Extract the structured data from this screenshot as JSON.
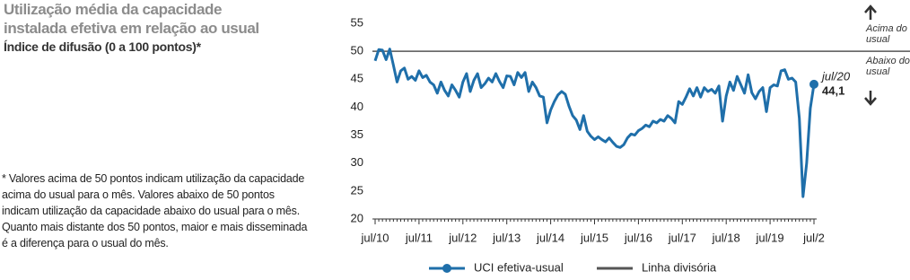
{
  "chart_data": {
    "type": "line",
    "title": "Utilização média da capacidade instalada efetiva em relação ao usual",
    "subtitle": "Índice de difusão (0 a 100 pontos)*",
    "note": "* Valores acima de 50 pontos indicam utilização da capacidade acima do usual para o mês. Valores abaixo de 50 pontos indicam utilização da capacidade abaixo do usual para o mês. Quanto mais distante dos 50 pontos, maior e mais disseminada é a diferença para o usual do mês.",
    "above_label": "Acima do usual",
    "below_label": "Abaixo do usual",
    "annotation": "jul/20",
    "categories": [
      "jul/10",
      null,
      null,
      null,
      null,
      null,
      null,
      null,
      null,
      null,
      null,
      null,
      "jul/11",
      null,
      null,
      null,
      null,
      null,
      null,
      null,
      null,
      null,
      null,
      null,
      "jul/12",
      null,
      null,
      null,
      null,
      null,
      null,
      null,
      null,
      null,
      null,
      null,
      "jul/13",
      null,
      null,
      null,
      null,
      null,
      null,
      null,
      null,
      null,
      null,
      null,
      "jul/14",
      null,
      null,
      null,
      null,
      null,
      null,
      null,
      null,
      null,
      null,
      null,
      "jul/15",
      null,
      null,
      null,
      null,
      null,
      null,
      null,
      null,
      null,
      null,
      null,
      "jul/16",
      null,
      null,
      null,
      null,
      null,
      null,
      null,
      null,
      null,
      null,
      null,
      "jul/17",
      null,
      null,
      null,
      null,
      null,
      null,
      null,
      null,
      null,
      null,
      null,
      "jul/18",
      null,
      null,
      null,
      null,
      null,
      null,
      null,
      null,
      null,
      null,
      null,
      "jul/19",
      null,
      null,
      null,
      null,
      null,
      null,
      null,
      null,
      null,
      null,
      null,
      "jul/2"
    ],
    "series": [
      {
        "name": "UCI efetiva-usual",
        "color": "#1f6faa",
        "values": [
          48.3,
          50.3,
          50.2,
          48.5,
          50.4,
          47.5,
          44.5,
          46.5,
          47,
          45,
          45.5,
          44.8,
          46.5,
          45.3,
          45.7,
          44.5,
          44,
          42.5,
          44.5,
          43,
          42,
          44,
          43,
          41.8,
          44.5,
          46,
          42.8,
          44.8,
          46,
          43.5,
          44.2,
          45.2,
          44.5,
          46,
          44.6,
          43.5,
          45.6,
          45.5,
          44,
          46.2,
          45.3,
          46.2,
          42.8,
          44.5,
          43.5,
          42,
          41.8,
          37.2,
          39.5,
          41,
          42.2,
          42.8,
          42.3,
          40.2,
          38.5,
          37.7,
          36,
          38.5,
          35.7,
          34.8,
          34.2,
          34.7,
          34.2,
          33.8,
          34.5,
          33.7,
          33,
          32.8,
          33.3,
          34.5,
          35.2,
          35,
          35.8,
          36.2,
          36.8,
          36.5,
          37.5,
          37.2,
          37.8,
          37.5,
          38.5,
          38,
          37.2,
          41,
          40.5,
          41.8,
          43.3,
          42,
          43.5,
          41.8,
          43.5,
          42.8,
          43.2,
          42.5,
          43.8,
          37.5,
          42,
          44.5,
          43,
          45.5,
          44,
          42.5,
          45.8,
          42.6,
          41.5,
          42.8,
          43.5,
          39.2,
          43.5,
          44,
          43.8,
          46.5,
          46.7,
          45,
          45.2,
          44.5,
          38,
          24,
          30,
          39.8,
          44.1
        ],
        "value_labels": [
          null,
          null,
          null,
          null,
          null,
          null,
          null,
          null,
          null,
          null,
          null,
          null,
          null,
          null,
          null,
          null,
          null,
          null,
          null,
          null,
          null,
          null,
          null,
          null,
          null,
          null,
          null,
          null,
          null,
          null,
          null,
          null,
          null,
          null,
          null,
          null,
          null,
          null,
          null,
          null,
          null,
          null,
          null,
          null,
          null,
          null,
          null,
          null,
          null,
          null,
          null,
          null,
          null,
          null,
          null,
          null,
          null,
          null,
          null,
          null,
          null,
          null,
          null,
          null,
          null,
          null,
          null,
          null,
          null,
          null,
          null,
          null,
          null,
          null,
          null,
          null,
          null,
          null,
          null,
          null,
          null,
          null,
          null,
          null,
          null,
          null,
          null,
          null,
          null,
          null,
          null,
          null,
          null,
          null,
          null,
          null,
          null,
          null,
          null,
          null,
          null,
          null,
          null,
          null,
          null,
          null,
          null,
          null,
          null,
          null,
          null,
          null,
          null,
          null,
          null,
          null,
          null,
          null,
          null,
          null,
          "44,1"
        ]
      }
    ],
    "hline": {
      "name": "Linha divisória",
      "value": 50,
      "color": "#555555"
    },
    "ylim": [
      20,
      55
    ],
    "yticks": [
      20,
      25,
      30,
      35,
      40,
      45,
      50,
      55
    ]
  }
}
